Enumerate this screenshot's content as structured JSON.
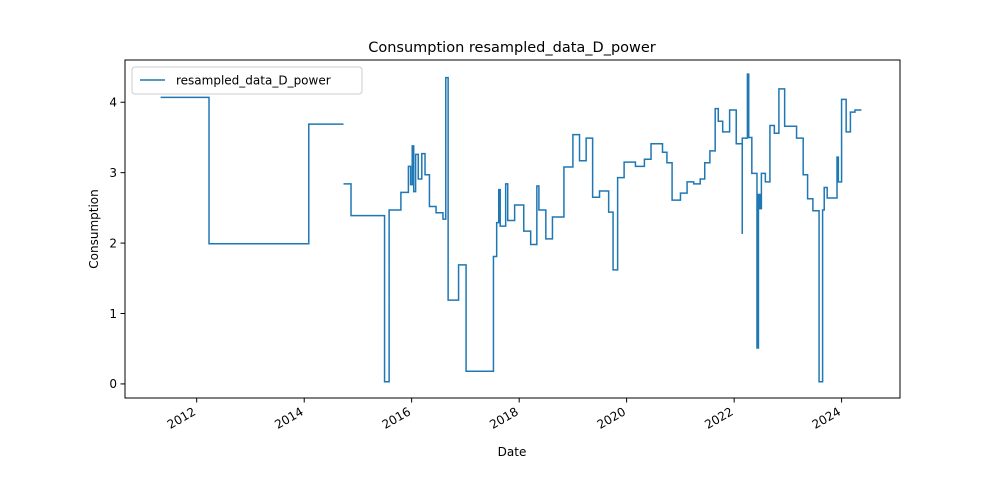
{
  "chart_data": {
    "type": "line",
    "title": "Consumption resampled_data_D_power",
    "xlabel": "Date",
    "ylabel": "Consumption",
    "xlim": [
      "2010-09-01",
      "2025-02-01"
    ],
    "ylim": [
      -0.2,
      4.6
    ],
    "x_ticks": [
      "2012-01-01",
      "2014-01-01",
      "2016-01-01",
      "2018-01-01",
      "2020-01-01",
      "2022-01-01",
      "2024-01-01"
    ],
    "x_tick_labels": [
      "2012",
      "2014",
      "2016",
      "2018",
      "2020",
      "2022",
      "2024"
    ],
    "y_ticks": [
      0,
      1,
      2,
      3,
      4
    ],
    "y_tick_labels": [
      "0",
      "1",
      "2",
      "3",
      "4"
    ],
    "grid": false,
    "legend": {
      "position": "top-left",
      "entries": [
        "resampled_data_D_power"
      ]
    },
    "line_color": "#1f77b4",
    "series": [
      {
        "name": "resampled_data_D_power",
        "segments": [
          [
            [
              "2011-05-01",
              4.07
            ],
            [
              "2012-03-25",
              4.07
            ],
            [
              "2012-03-25",
              1.99
            ],
            [
              "2014-02-01",
              1.99
            ],
            [
              "2014-02-01",
              3.69
            ],
            [
              "2014-09-25",
              3.69
            ]
          ],
          [
            [
              "2014-09-25",
              2.84
            ],
            [
              "2014-11-15",
              2.84
            ],
            [
              "2014-11-15",
              2.39
            ],
            [
              "2015-07-01",
              2.39
            ],
            [
              "2015-07-01",
              0.03
            ],
            [
              "2015-08-01",
              0.03
            ],
            [
              "2015-08-01",
              2.47
            ],
            [
              "2015-10-20",
              2.47
            ],
            [
              "2015-10-20",
              2.72
            ],
            [
              "2015-12-10",
              2.72
            ],
            [
              "2015-12-10",
              3.09
            ],
            [
              "2015-12-25",
              3.09
            ],
            [
              "2015-12-25",
              2.83
            ],
            [
              "2016-01-05",
              2.83
            ],
            [
              "2016-01-05",
              3.38
            ],
            [
              "2016-01-15",
              3.38
            ],
            [
              "2016-01-15",
              2.73
            ],
            [
              "2016-01-28",
              2.73
            ],
            [
              "2016-01-28",
              3.26
            ],
            [
              "2016-02-15",
              3.26
            ],
            [
              "2016-02-15",
              2.91
            ],
            [
              "2016-03-10",
              2.91
            ],
            [
              "2016-03-10",
              3.27
            ],
            [
              "2016-04-01",
              3.27
            ],
            [
              "2016-04-01",
              2.97
            ],
            [
              "2016-05-01",
              2.97
            ],
            [
              "2016-05-01",
              2.52
            ],
            [
              "2016-06-15",
              2.52
            ],
            [
              "2016-06-15",
              2.43
            ],
            [
              "2016-08-01",
              2.43
            ],
            [
              "2016-08-01",
              2.34
            ],
            [
              "2016-08-20",
              2.34
            ],
            [
              "2016-08-20",
              4.35
            ],
            [
              "2016-09-05",
              4.35
            ],
            [
              "2016-09-05",
              1.19
            ],
            [
              "2016-11-15",
              1.19
            ],
            [
              "2016-11-15",
              1.69
            ],
            [
              "2017-01-05",
              1.69
            ],
            [
              "2017-01-05",
              0.18
            ],
            [
              "2017-07-10",
              0.18
            ],
            [
              "2017-07-10",
              1.81
            ],
            [
              "2017-08-01",
              1.81
            ],
            [
              "2017-08-01",
              2.29
            ],
            [
              "2017-08-15",
              2.29
            ],
            [
              "2017-08-15",
              2.76
            ],
            [
              "2017-08-25",
              2.76
            ],
            [
              "2017-08-25",
              2.24
            ],
            [
              "2017-10-01",
              2.24
            ],
            [
              "2017-10-01",
              2.84
            ],
            [
              "2017-10-15",
              2.84
            ],
            [
              "2017-10-15",
              2.32
            ],
            [
              "2017-12-01",
              2.32
            ],
            [
              "2017-12-01",
              2.54
            ],
            [
              "2018-02-01",
              2.54
            ],
            [
              "2018-02-01",
              2.17
            ],
            [
              "2018-03-20",
              2.17
            ],
            [
              "2018-03-20",
              1.98
            ],
            [
              "2018-05-01",
              1.98
            ],
            [
              "2018-05-01",
              2.81
            ],
            [
              "2018-05-15",
              2.81
            ],
            [
              "2018-05-15",
              2.47
            ],
            [
              "2018-07-01",
              2.47
            ],
            [
              "2018-07-01",
              2.06
            ],
            [
              "2018-08-15",
              2.06
            ],
            [
              "2018-08-15",
              2.37
            ],
            [
              "2018-11-01",
              2.37
            ],
            [
              "2018-11-01",
              3.08
            ],
            [
              "2019-01-01",
              3.08
            ],
            [
              "2019-01-01",
              3.54
            ],
            [
              "2019-02-15",
              3.54
            ],
            [
              "2019-02-15",
              3.17
            ],
            [
              "2019-04-01",
              3.17
            ],
            [
              "2019-04-01",
              3.49
            ],
            [
              "2019-05-15",
              3.49
            ],
            [
              "2019-05-15",
              2.65
            ],
            [
              "2019-07-01",
              2.65
            ],
            [
              "2019-07-01",
              2.74
            ],
            [
              "2019-09-01",
              2.74
            ],
            [
              "2019-09-01",
              2.44
            ],
            [
              "2019-10-01",
              2.44
            ],
            [
              "2019-10-01",
              1.62
            ],
            [
              "2019-11-01",
              1.62
            ],
            [
              "2019-11-01",
              2.93
            ],
            [
              "2019-12-15",
              2.93
            ],
            [
              "2019-12-15",
              3.15
            ],
            [
              "2020-03-01",
              3.15
            ],
            [
              "2020-03-01",
              3.09
            ],
            [
              "2020-05-01",
              3.09
            ],
            [
              "2020-05-01",
              3.19
            ],
            [
              "2020-06-15",
              3.19
            ],
            [
              "2020-06-15",
              3.41
            ],
            [
              "2020-09-01",
              3.41
            ],
            [
              "2020-09-01",
              3.29
            ],
            [
              "2020-10-01",
              3.29
            ],
            [
              "2020-10-01",
              3.14
            ],
            [
              "2020-11-05",
              3.14
            ],
            [
              "2020-11-05",
              2.61
            ],
            [
              "2021-01-01",
              2.61
            ],
            [
              "2021-01-01",
              2.71
            ],
            [
              "2021-02-15",
              2.71
            ],
            [
              "2021-02-15",
              2.87
            ],
            [
              "2021-04-01",
              2.87
            ],
            [
              "2021-04-01",
              2.84
            ],
            [
              "2021-05-15",
              2.84
            ],
            [
              "2021-05-15",
              2.91
            ],
            [
              "2021-06-15",
              2.91
            ],
            [
              "2021-06-15",
              3.14
            ],
            [
              "2021-07-20",
              3.14
            ],
            [
              "2021-07-20",
              3.31
            ],
            [
              "2021-08-25",
              3.31
            ],
            [
              "2021-08-25",
              3.91
            ],
            [
              "2021-09-15",
              3.91
            ],
            [
              "2021-09-15",
              3.73
            ],
            [
              "2021-10-15",
              3.73
            ],
            [
              "2021-10-15",
              3.58
            ],
            [
              "2021-12-01",
              3.58
            ],
            [
              "2021-12-01",
              3.89
            ],
            [
              "2022-01-15",
              3.89
            ],
            [
              "2022-01-15",
              3.41
            ],
            [
              "2022-02-20",
              3.41
            ]
          ],
          [
            [
              "2022-02-20",
              2.14
            ],
            [
              "2022-02-25",
              2.14
            ],
            [
              "2022-02-25",
              3.49
            ],
            [
              "2022-04-01",
              3.49
            ],
            [
              "2022-04-01",
              4.4
            ],
            [
              "2022-04-10",
              4.4
            ],
            [
              "2022-04-10",
              3.5
            ],
            [
              "2022-05-01",
              3.5
            ],
            [
              "2022-05-01",
              2.99
            ],
            [
              "2022-06-05",
              2.99
            ],
            [
              "2022-06-05",
              0.51
            ],
            [
              "2022-06-15",
              0.51
            ],
            [
              "2022-06-15",
              2.69
            ],
            [
              "2022-06-25",
              2.69
            ],
            [
              "2022-06-25",
              2.49
            ],
            [
              "2022-07-05",
              2.49
            ],
            [
              "2022-07-05",
              2.99
            ],
            [
              "2022-08-01",
              2.99
            ],
            [
              "2022-08-01",
              2.87
            ],
            [
              "2022-09-01",
              2.87
            ],
            [
              "2022-09-01",
              3.67
            ],
            [
              "2022-10-01",
              3.67
            ],
            [
              "2022-10-01",
              3.56
            ],
            [
              "2022-11-01",
              3.56
            ],
            [
              "2022-11-01",
              4.19
            ],
            [
              "2022-12-10",
              4.19
            ],
            [
              "2022-12-10",
              3.66
            ],
            [
              "2023-03-01",
              3.66
            ],
            [
              "2023-03-01",
              3.49
            ],
            [
              "2023-04-15",
              3.49
            ],
            [
              "2023-04-15",
              2.97
            ],
            [
              "2023-05-15",
              2.97
            ],
            [
              "2023-05-15",
              2.63
            ],
            [
              "2023-06-20",
              2.63
            ],
            [
              "2023-06-20",
              2.46
            ],
            [
              "2023-08-01",
              2.46
            ],
            [
              "2023-08-01",
              0.03
            ],
            [
              "2023-08-25",
              0.03
            ],
            [
              "2023-08-25",
              2.47
            ],
            [
              "2023-09-05",
              2.47
            ],
            [
              "2023-09-05",
              2.79
            ],
            [
              "2023-09-25",
              2.79
            ],
            [
              "2023-09-25",
              2.64
            ],
            [
              "2023-12-01",
              2.64
            ],
            [
              "2023-12-01",
              3.22
            ],
            [
              "2023-12-10",
              3.22
            ],
            [
              "2023-12-10",
              2.87
            ],
            [
              "2024-01-01",
              2.87
            ],
            [
              "2024-01-01",
              4.04
            ],
            [
              "2024-02-01",
              4.04
            ],
            [
              "2024-02-01",
              3.58
            ],
            [
              "2024-03-01",
              3.58
            ],
            [
              "2024-03-01",
              3.86
            ],
            [
              "2024-04-01",
              3.86
            ],
            [
              "2024-04-01",
              3.89
            ],
            [
              "2024-05-15",
              3.89
            ]
          ]
        ]
      }
    ]
  }
}
